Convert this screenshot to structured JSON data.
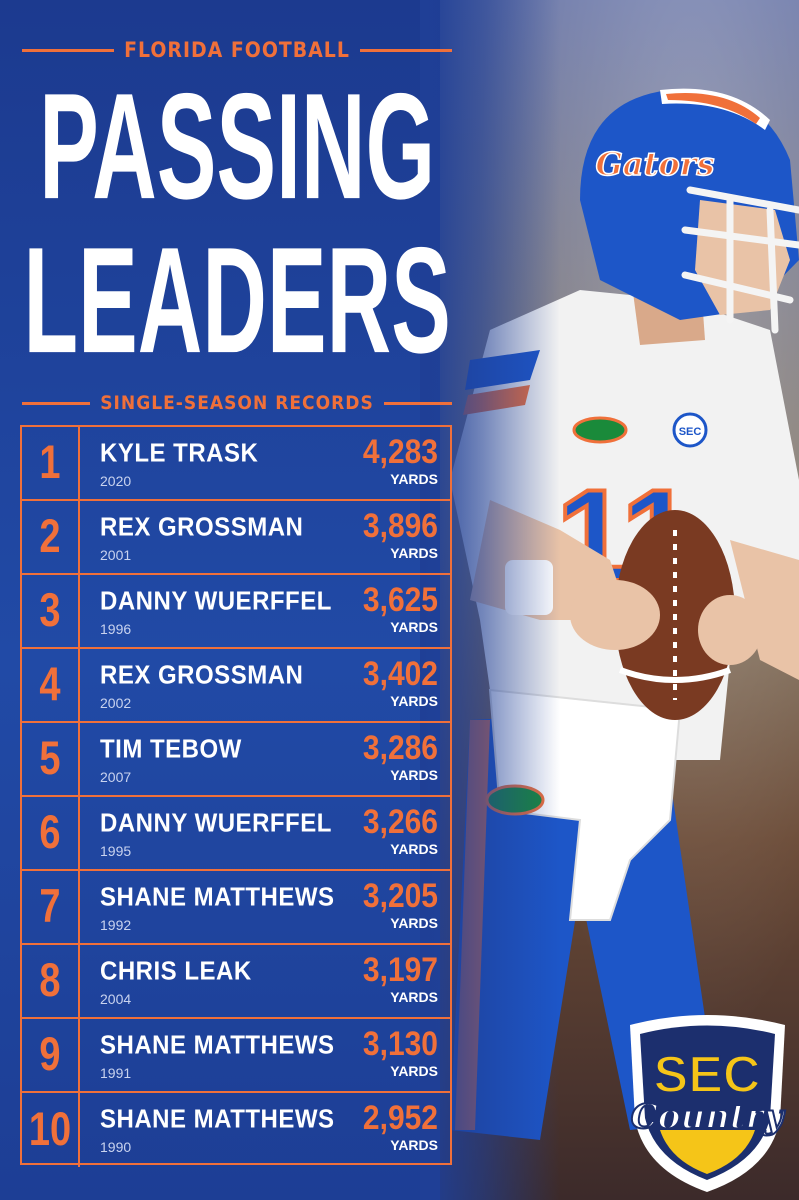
{
  "header": {
    "kicker": "FLORIDA FOOTBALL",
    "title_line_1": "PASSING",
    "title_line_2": "LEADERS",
    "subtitle": "SINGLE-SEASON RECORDS"
  },
  "records": [
    {
      "rank": "1",
      "name": "KYLE TRASK",
      "year": "2020",
      "yards": "4,283",
      "unit": "YARDS"
    },
    {
      "rank": "2",
      "name": "REX GROSSMAN",
      "year": "2001",
      "yards": "3,896",
      "unit": "YARDS"
    },
    {
      "rank": "3",
      "name": "DANNY WUERFFEL",
      "year": "1996",
      "yards": "3,625",
      "unit": "YARDS"
    },
    {
      "rank": "4",
      "name": "REX GROSSMAN",
      "year": "2002",
      "yards": "3,402",
      "unit": "YARDS"
    },
    {
      "rank": "5",
      "name": "TIM TEBOW",
      "year": "2007",
      "yards": "3,286",
      "unit": "YARDS"
    },
    {
      "rank": "6",
      "name": "DANNY WUERFFEL",
      "year": "1995",
      "yards": "3,266",
      "unit": "YARDS"
    },
    {
      "rank": "7",
      "name": "SHANE MATTHEWS",
      "year": "1992",
      "yards": "3,205",
      "unit": "YARDS"
    },
    {
      "rank": "8",
      "name": "CHRIS LEAK",
      "year": "2004",
      "yards": "3,197",
      "unit": "YARDS"
    },
    {
      "rank": "9",
      "name": "SHANE MATTHEWS",
      "year": "1991",
      "yards": "3,130",
      "unit": "YARDS"
    },
    {
      "rank": "10",
      "name": "SHANE MATTHEWS",
      "year": "1990",
      "yards": "2,952",
      "unit": "YARDS"
    }
  ],
  "photo": {
    "helmet_text": "Gators",
    "jersey_number": "11",
    "patch": "SEC"
  },
  "logo": {
    "line_1": "SEC",
    "line_2": "Country"
  },
  "colors": {
    "background_blue": "#1f3f96",
    "accent_orange": "#f0703a",
    "text_white": "#ffffff"
  }
}
